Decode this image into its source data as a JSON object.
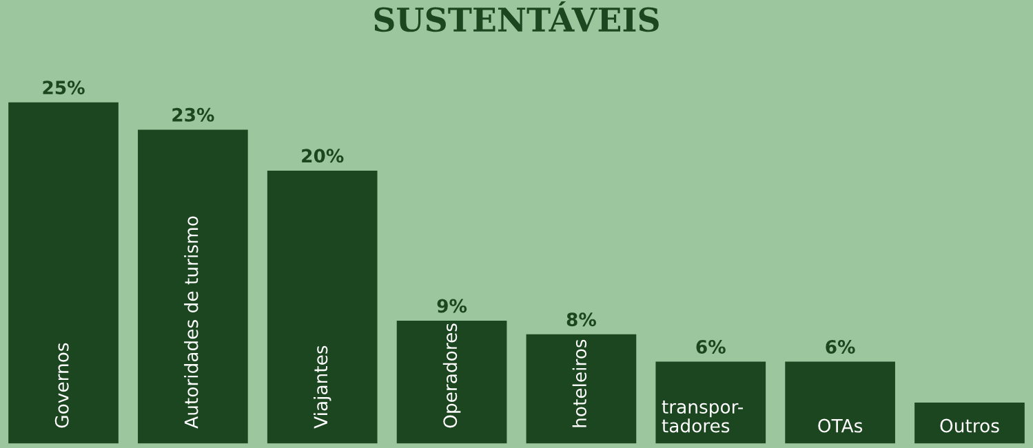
{
  "chart_data": {
    "type": "bar",
    "title": "SUSTENTÁVEIS",
    "categories": [
      "Governos",
      "Autoridades de turismo",
      "Viajantes",
      "Operadores",
      "hoteleiros",
      "transpor-\ntadores",
      "OTAs",
      "Outros"
    ],
    "values": [
      25,
      23,
      20,
      9,
      8,
      6,
      6,
      3
    ],
    "value_labels": [
      "25%",
      "23%",
      "20%",
      "9%",
      "8%",
      "6%",
      "6%",
      null
    ],
    "color": "#1c4620"
  }
}
